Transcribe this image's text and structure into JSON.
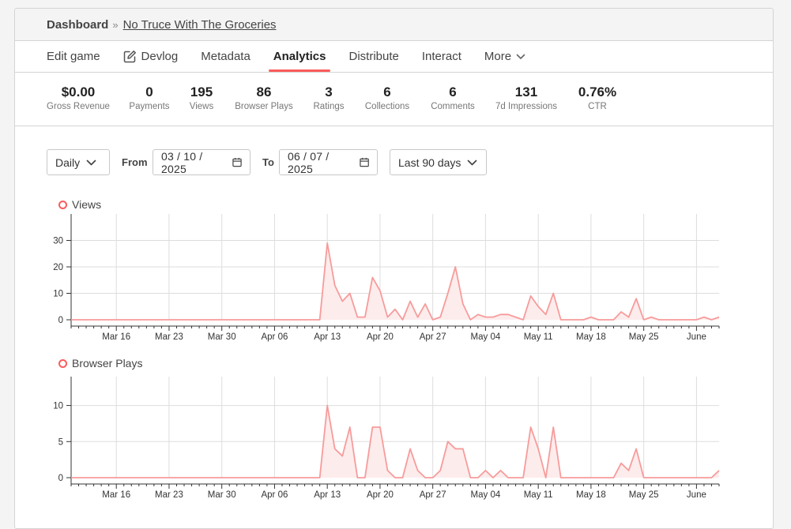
{
  "breadcrumb": {
    "home": "Dashboard",
    "separator": "»",
    "game": "No Truce With The Groceries"
  },
  "tabs": [
    {
      "label": "Edit game",
      "icon": null
    },
    {
      "label": "Devlog",
      "icon": "edit-icon"
    },
    {
      "label": "Metadata",
      "icon": null
    },
    {
      "label": "Analytics",
      "icon": null,
      "active": true
    },
    {
      "label": "Distribute",
      "icon": null
    },
    {
      "label": "Interact",
      "icon": null
    },
    {
      "label": "More",
      "icon": "chevron-down-icon"
    }
  ],
  "stats": [
    {
      "value": "$0.00",
      "label": "Gross Revenue"
    },
    {
      "value": "0",
      "label": "Payments"
    },
    {
      "value": "195",
      "label": "Views"
    },
    {
      "value": "86",
      "label": "Browser Plays"
    },
    {
      "value": "3",
      "label": "Ratings"
    },
    {
      "value": "6",
      "label": "Collections"
    },
    {
      "value": "6",
      "label": "Comments"
    },
    {
      "value": "131",
      "label": "7d Impressions"
    },
    {
      "value": "0.76%",
      "label": "CTR"
    }
  ],
  "controls": {
    "interval": "Daily",
    "from_label": "From",
    "from_date": "03 / 10 / 2025",
    "to_label": "To",
    "to_date": "06 / 07 / 2025",
    "range": "Last 90 days"
  },
  "colors": {
    "accent": "#fa5c5c",
    "line": "#f79b9b",
    "fill": "#fdecec",
    "grid": "#dddddd"
  },
  "chart_data": [
    {
      "type": "area",
      "title": "Views",
      "x_start": "2025-03-10",
      "x_ticks": [
        "Mar 16",
        "Mar 23",
        "Mar 30",
        "Apr 06",
        "Apr 13",
        "Apr 20",
        "Apr 27",
        "May 04",
        "May 11",
        "May 18",
        "May 25",
        "June"
      ],
      "y_ticks": [
        0,
        10,
        20,
        30
      ],
      "ylim": [
        0,
        40
      ],
      "grid": true,
      "values": [
        0,
        0,
        0,
        0,
        0,
        0,
        0,
        0,
        0,
        0,
        0,
        0,
        0,
        0,
        0,
        0,
        0,
        0,
        0,
        0,
        0,
        0,
        0,
        0,
        0,
        0,
        0,
        0,
        0,
        0,
        0,
        0,
        0,
        0,
        29,
        13,
        7,
        10,
        1,
        1,
        16,
        11,
        1,
        4,
        0,
        7,
        1,
        6,
        0,
        1,
        10,
        20,
        6,
        0,
        2,
        1,
        1,
        2,
        2,
        1,
        0,
        9,
        5,
        2,
        10,
        0,
        0,
        0,
        0,
        1,
        0,
        0,
        0,
        3,
        1,
        8,
        0,
        1,
        0,
        0,
        0,
        0,
        0,
        0,
        1,
        0,
        1
      ]
    },
    {
      "type": "area",
      "title": "Browser Plays",
      "x_start": "2025-03-10",
      "x_ticks": [
        "Mar 16",
        "Mar 23",
        "Mar 30",
        "Apr 06",
        "Apr 13",
        "Apr 20",
        "Apr 27",
        "May 04",
        "May 11",
        "May 18",
        "May 25",
        "June"
      ],
      "y_ticks": [
        0,
        5,
        10
      ],
      "ylim": [
        0,
        14
      ],
      "grid": true,
      "values": [
        0,
        0,
        0,
        0,
        0,
        0,
        0,
        0,
        0,
        0,
        0,
        0,
        0,
        0,
        0,
        0,
        0,
        0,
        0,
        0,
        0,
        0,
        0,
        0,
        0,
        0,
        0,
        0,
        0,
        0,
        0,
        0,
        0,
        0,
        10,
        4,
        3,
        7,
        0,
        0,
        7,
        7,
        1,
        0,
        0,
        4,
        1,
        0,
        0,
        1,
        5,
        4,
        4,
        0,
        0,
        1,
        0,
        1,
        0,
        0,
        0,
        7,
        4,
        0,
        7,
        0,
        0,
        0,
        0,
        0,
        0,
        0,
        0,
        2,
        1,
        4,
        0,
        0,
        0,
        0,
        0,
        0,
        0,
        0,
        0,
        0,
        1
      ]
    }
  ]
}
